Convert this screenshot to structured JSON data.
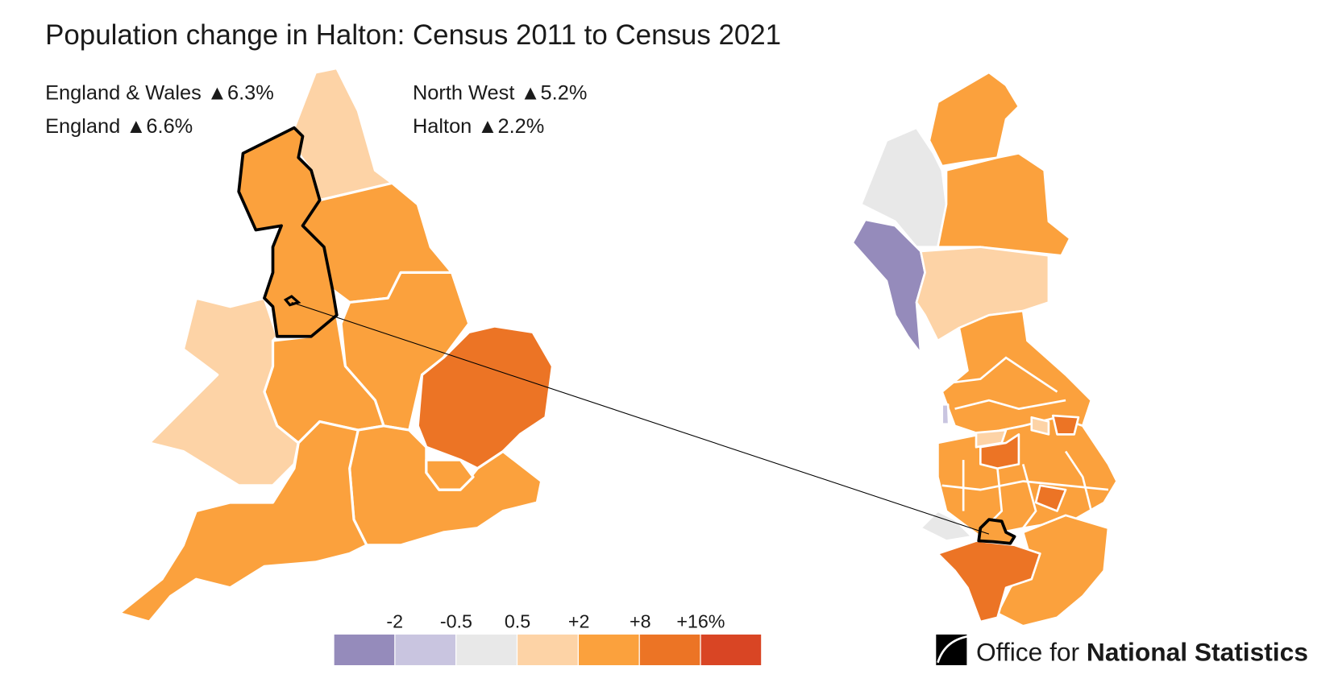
{
  "title": "Population change in Halton: Census 2011 to Census 2021",
  "stats": [
    {
      "label": "England & Wales ▲6.3%"
    },
    {
      "label": "England ▲6.6%"
    },
    {
      "label": "North West ▲5.2%"
    },
    {
      "label": "Halton ▲2.2%"
    }
  ],
  "legend": {
    "breaks": [
      "-2",
      "-0.5",
      "0.5",
      "+2",
      "+8",
      "+16%"
    ],
    "colors": [
      "#958bbb",
      "#c9c5e0",
      "#e8e8e8",
      "#fdd3a6",
      "#fba13d",
      "#ec7425",
      "#d94524"
    ]
  },
  "regions": [
    {
      "name": "North East",
      "color": "#fdd3a6"
    },
    {
      "name": "North West",
      "color": "#fba13d",
      "highlighted": true
    },
    {
      "name": "Yorkshire and The Humber",
      "color": "#fba13d"
    },
    {
      "name": "East Midlands",
      "color": "#fba13d"
    },
    {
      "name": "West Midlands",
      "color": "#fba13d"
    },
    {
      "name": "Wales",
      "color": "#fdd3a6"
    },
    {
      "name": "East of England",
      "color": "#ec7425"
    },
    {
      "name": "London",
      "color": "#fba13d"
    },
    {
      "name": "South East",
      "color": "#fba13d"
    },
    {
      "name": "South West",
      "color": "#fba13d"
    }
  ],
  "highlight_area": "Halton",
  "logo": {
    "text_light": "Office for",
    "text_bold": "National Statistics"
  }
}
